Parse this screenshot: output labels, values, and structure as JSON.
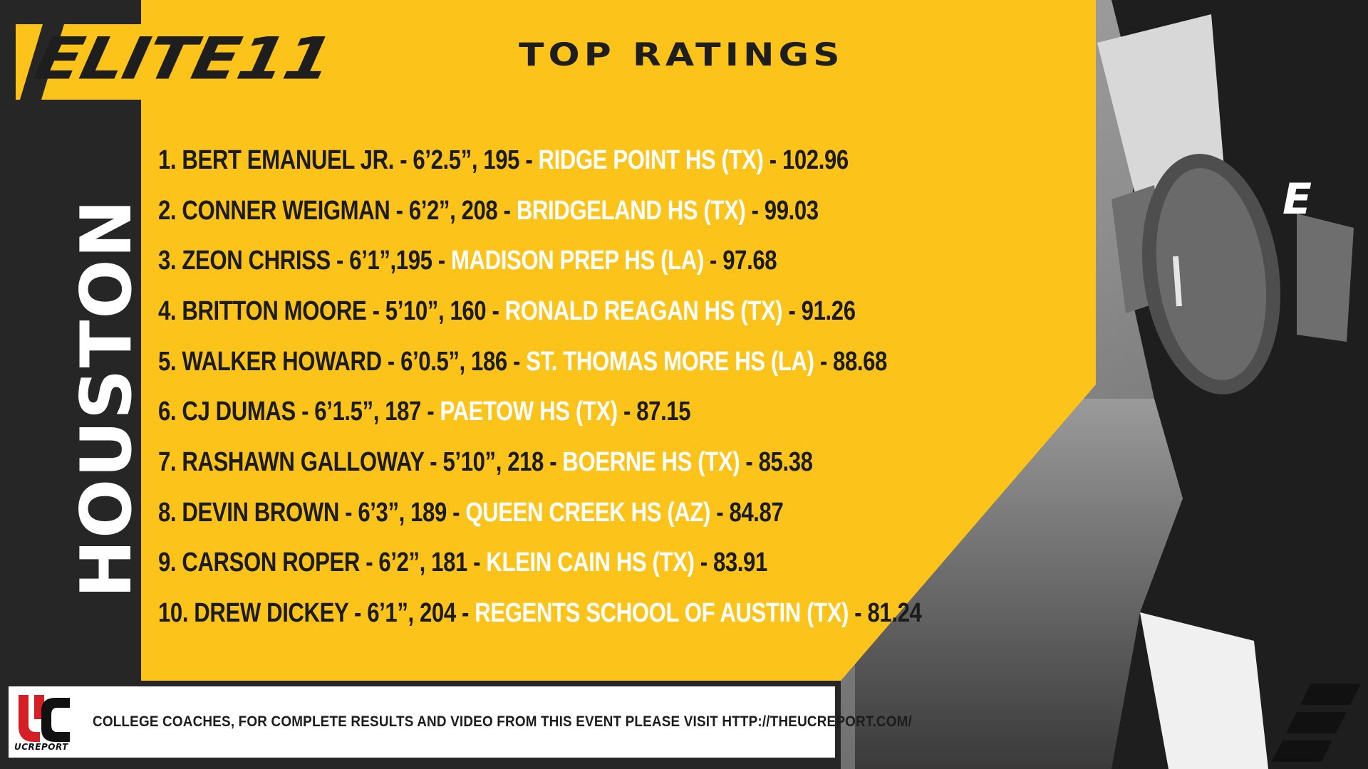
{
  "header": {
    "brand": "ELITE11",
    "subtitle": "TOP RATINGS"
  },
  "sidebar": {
    "city": "HOUSTON"
  },
  "ratings": [
    {
      "rank": "1.",
      "name": "BERT EMANUEL JR. - 6’2.5”, 195 - ",
      "school": "RIDGE POINT HS (TX)",
      "score": " - 102.96"
    },
    {
      "rank": "2.",
      "name": "CONNER WEIGMAN - 6’2”, 208 - ",
      "school": "BRIDGELAND HS (TX)",
      "score": " - 99.03"
    },
    {
      "rank": "3.",
      "name": "ZEON CHRISS - 6’1”,195 - ",
      "school": "MADISON PREP HS (LA)",
      "score": " - 97.68"
    },
    {
      "rank": "4.",
      "name": "BRITTON MOORE - 5’10”, 160 - ",
      "school": "RONALD REAGAN HS (TX)",
      "score": " - 91.26"
    },
    {
      "rank": "5.",
      "name": "WALKER HOWARD - 6’0.5”, 186 - ",
      "school": "ST. THOMAS MORE HS (LA)",
      "score": " - 88.68"
    },
    {
      "rank": "6.",
      "name": "CJ DUMAS - 6’1.5”, 187 - ",
      "school": "PAETOW HS (TX)",
      "score": " - 87.15"
    },
    {
      "rank": "7.",
      "name": "RASHAWN GALLOWAY - 5’10”, 218 - ",
      "school": "BOERNE HS (TX)",
      "score": " - 85.38"
    },
    {
      "rank": "8.",
      "name": "DEVIN BROWN - 6’3”, 189 - ",
      "school": "QUEEN CREEK HS (AZ)",
      "score": " - 84.87"
    },
    {
      "rank": "9.",
      "name": "CARSON ROPER - 6’2”, 181 - ",
      "school": "KLEIN CAIN HS (TX)",
      "score": " - 83.91"
    },
    {
      "rank": "10.",
      "name": "DREW DICKEY - 6’1”, 204 - ",
      "school": "REGENTS SCHOOL OF AUSTIN (TX)",
      "score": " - 81.24"
    }
  ],
  "footer": {
    "logo_caption": "UCREPORT",
    "message": "COLLEGE COACHES, FOR COMPLETE RESULTS AND VIDEO FROM THIS EVENT PLEASE VISIT HTTP://THEUCREPORT.COM/"
  },
  "colors": {
    "accent_yellow": "#fcc31a",
    "dark": "#262626",
    "uc_red": "#d41f26"
  }
}
